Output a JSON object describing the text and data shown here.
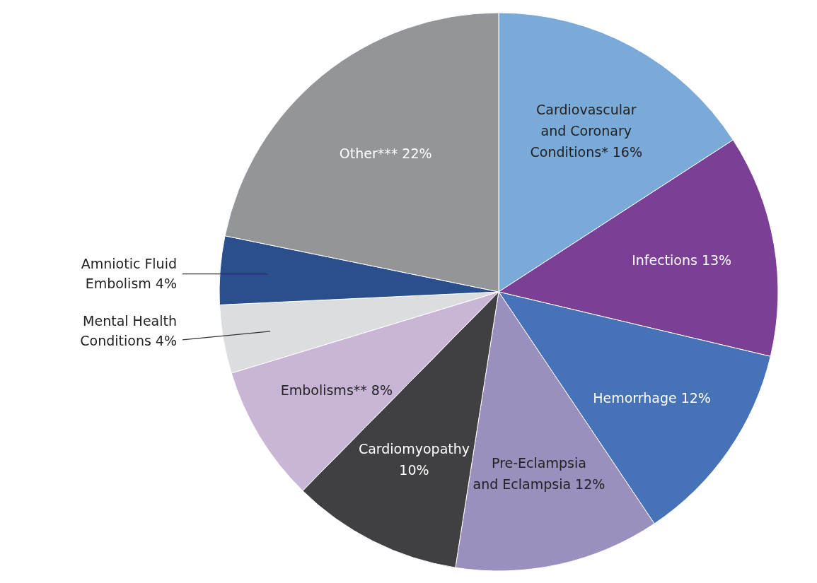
{
  "chart_data": {
    "type": "pie",
    "categories": [
      "Cardiovascular and Coronary Conditions*",
      "Infections",
      "Hemorrhage",
      "Pre-Eclampsia and Eclampsia",
      "Cardiomyopathy",
      "Embolisms**",
      "Mental Health Conditions",
      "Amniotic Fluid Embolism",
      "Other***"
    ],
    "values": [
      16,
      13,
      12,
      12,
      10,
      8,
      4,
      4,
      22
    ],
    "value_labels": [
      "16%",
      "13%",
      "12%",
      "12%",
      "10%",
      "8%",
      "4%",
      "4%",
      "22%"
    ],
    "colors": [
      "#7aaad8",
      "#7b3f96",
      "#4672b8",
      "#9a8fbd",
      "#404042",
      "#c9b5d5",
      "#dcdddf",
      "#2b4f8c",
      "#939598"
    ]
  }
}
